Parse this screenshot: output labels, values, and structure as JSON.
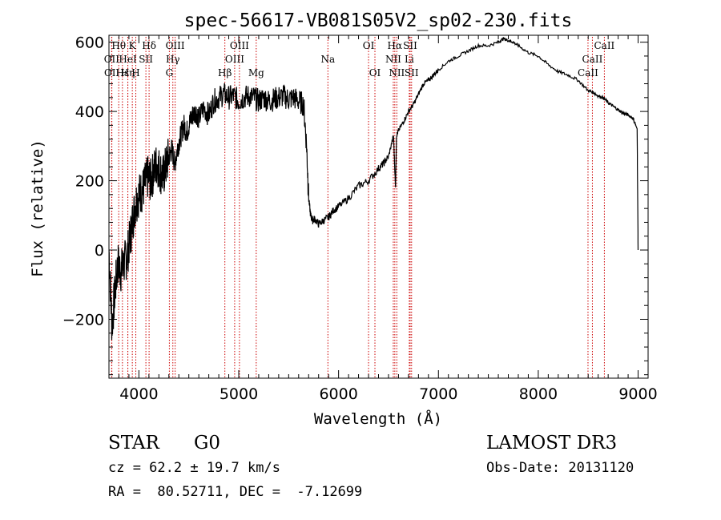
{
  "chart_data": {
    "type": "line",
    "title": "spec-56617-VB081S05V2_sp02-230.fits",
    "xlabel": "Wavelength (Å)",
    "ylabel": "Flux (relative)",
    "xlim": [
      3700,
      9100
    ],
    "ylim": [
      -370,
      620
    ],
    "xticks": [
      4000,
      5000,
      6000,
      7000,
      8000,
      9000
    ],
    "xtick_labels": [
      "4000",
      "5000",
      "6000",
      "7000",
      "8000",
      "9000"
    ],
    "yticks": [
      -200,
      0,
      200,
      400,
      600
    ],
    "ytick_labels": [
      "−200",
      "0",
      "200",
      "400",
      "600"
    ],
    "spectrum": {
      "x": [
        3700,
        3730,
        3760,
        3790,
        3820,
        3850,
        3880,
        3910,
        3940,
        3970,
        4000,
        4030,
        4060,
        4090,
        4120,
        4150,
        4180,
        4210,
        4240,
        4270,
        4300,
        4330,
        4360,
        4390,
        4420,
        4450,
        4480,
        4510,
        4540,
        4570,
        4600,
        4650,
        4700,
        4750,
        4800,
        4850,
        4900,
        4950,
        5000,
        5050,
        5100,
        5150,
        5200,
        5250,
        5300,
        5350,
        5400,
        5450,
        5500,
        5550,
        5600,
        5650,
        5680,
        5700,
        5720,
        5740,
        5760,
        5800,
        5850,
        5900,
        5950,
        6000,
        6100,
        6200,
        6300,
        6400,
        6450,
        6500,
        6550,
        6570,
        6580,
        6600,
        6650,
        6700,
        6750,
        6800,
        6850,
        6900,
        6950,
        7000,
        7100,
        7200,
        7300,
        7400,
        7500,
        7600,
        7650,
        7700,
        7750,
        7800,
        7900,
        8000,
        8100,
        8200,
        8300,
        8400,
        8500,
        8550,
        8600,
        8650,
        8700,
        8750,
        8800,
        8850,
        8900,
        8950,
        8990,
        9000
      ],
      "y": [
        0,
        -220,
        -120,
        -40,
        -60,
        -40,
        -20,
        30,
        90,
        140,
        160,
        170,
        190,
        210,
        200,
        230,
        250,
        230,
        210,
        240,
        270,
        290,
        250,
        300,
        330,
        360,
        340,
        370,
        390,
        400,
        380,
        410,
        390,
        430,
        440,
        450,
        440,
        445,
        430,
        440,
        445,
        440,
        430,
        440,
        430,
        435,
        440,
        445,
        435,
        440,
        430,
        420,
        300,
        150,
        100,
        85,
        90,
        75,
        85,
        95,
        115,
        125,
        150,
        185,
        200,
        235,
        250,
        270,
        330,
        180,
        330,
        345,
        370,
        400,
        420,
        450,
        480,
        490,
        505,
        520,
        545,
        560,
        575,
        590,
        590,
        600,
        610,
        605,
        600,
        590,
        570,
        560,
        535,
        515,
        505,
        490,
        460,
        455,
        445,
        440,
        425,
        415,
        405,
        395,
        390,
        380,
        350,
        0
      ]
    },
    "lines": [
      {
        "name": "Hθ",
        "x": 3798,
        "row": 1
      },
      {
        "name": "K",
        "x": 3934,
        "row": 1
      },
      {
        "name": "Hδ",
        "x": 4102,
        "row": 1
      },
      {
        "name": "OIII",
        "x": 4363,
        "row": 1
      },
      {
        "name": "OIII",
        "x": 5007,
        "row": 1
      },
      {
        "name": "OI",
        "x": 6300,
        "row": 1
      },
      {
        "name": "Hα",
        "x": 6563,
        "row": 1
      },
      {
        "name": "SII",
        "x": 6717,
        "row": 1
      },
      {
        "name": "CaII",
        "x": 8662,
        "row": 1
      },
      {
        "name": "OII",
        "x": 3727,
        "row": 2
      },
      {
        "name": "HeI",
        "x": 3889,
        "row": 2
      },
      {
        "name": "SII",
        "x": 4070,
        "row": 2
      },
      {
        "name": "Hγ",
        "x": 4340,
        "row": 2
      },
      {
        "name": "OIII",
        "x": 4959,
        "row": 2
      },
      {
        "name": "Na",
        "x": 5893,
        "row": 2
      },
      {
        "name": "NII",
        "x": 6548,
        "row": 2
      },
      {
        "name": "Li",
        "x": 6708,
        "row": 2
      },
      {
        "name": "CaII",
        "x": 8542,
        "row": 2
      },
      {
        "name": "OII",
        "x": 3729,
        "row": 3
      },
      {
        "name": "Hε",
        "x": 3835,
        "row": 3
      },
      {
        "name": "Hη",
        "x": 3889,
        "row": 3
      },
      {
        "name": "H",
        "x": 3969,
        "row": 3
      },
      {
        "name": "G",
        "x": 4305,
        "row": 3
      },
      {
        "name": "Hβ",
        "x": 4861,
        "row": 3
      },
      {
        "name": "Mg",
        "x": 5175,
        "row": 3
      },
      {
        "name": "OI",
        "x": 6364,
        "row": 3
      },
      {
        "name": "NII",
        "x": 6583,
        "row": 3
      },
      {
        "name": "SII",
        "x": 6731,
        "row": 3
      },
      {
        "name": "CaII",
        "x": 8498,
        "row": 3
      }
    ],
    "line_marker_color": "#cc0000",
    "grid": false
  },
  "info": {
    "class_label": "STAR",
    "subclass": "G0",
    "survey": "LAMOST DR3",
    "cz": "cz = 62.2 ± 19.7 km/s",
    "obs_date": "Obs-Date: 20131120",
    "coords": "RA =  80.52711, DEC =  -7.12699"
  }
}
